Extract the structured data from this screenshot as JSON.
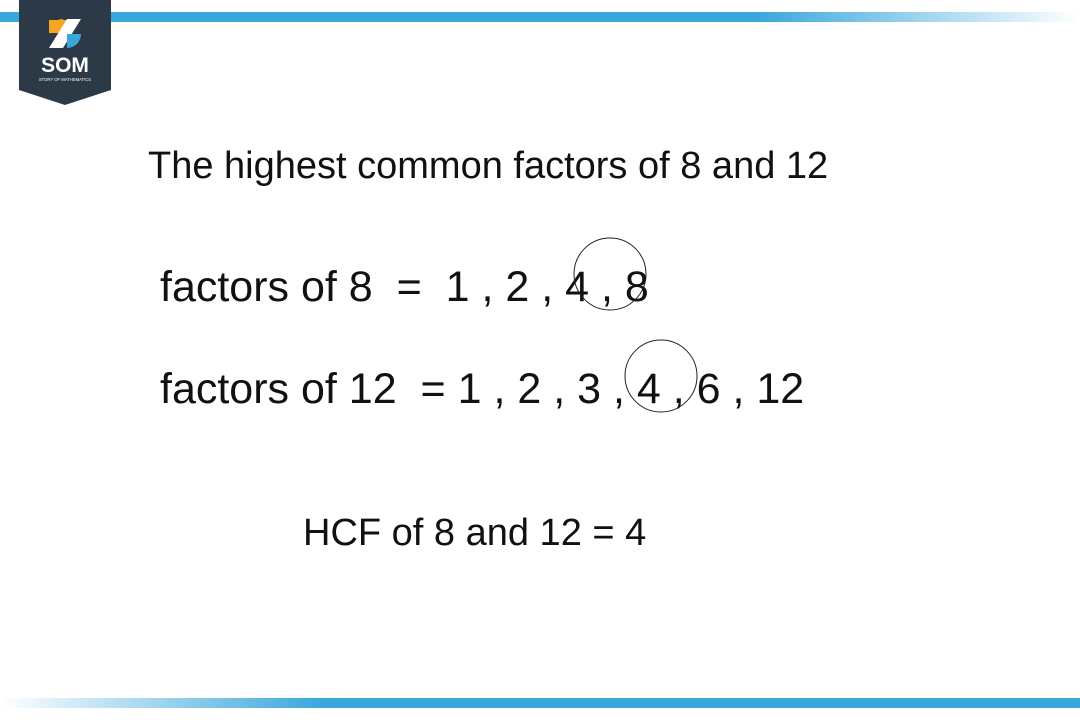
{
  "logo": {
    "text": "SOM",
    "subtext": "STORY OF MATHEMATICS",
    "colors": {
      "badge": "#2c3a47",
      "orange": "#f5a623",
      "blue": "#3aa7dc"
    }
  },
  "accent_color": "#3aa7dc",
  "title": "The highest common factors of 8 and 12",
  "factors_8": "factors of 8  =  1 , 2 , 4 , 8",
  "factors_12": "factors of 12  = 1 , 2 , 3 , 4 , 6 , 12",
  "circled_value": "4",
  "result": "HCF of 8 and 12 = 4"
}
